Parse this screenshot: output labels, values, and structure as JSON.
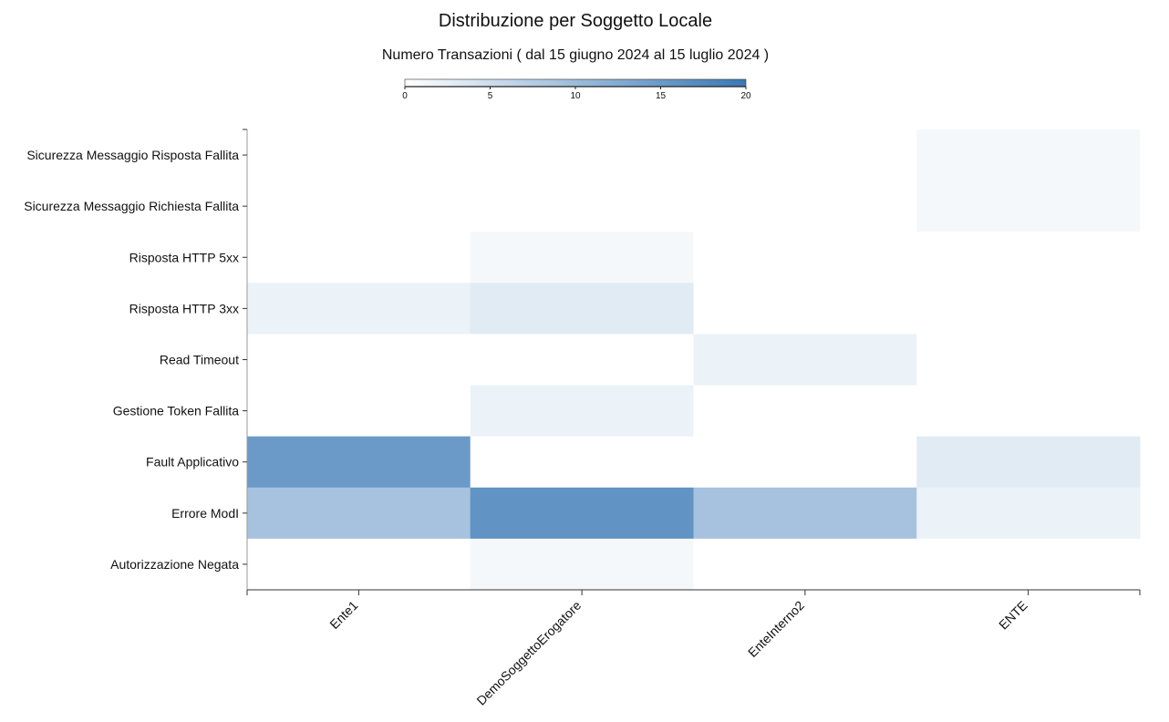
{
  "chart_data": {
    "type": "heatmap",
    "title": "Distribuzione per Soggetto Locale",
    "subtitle": "Numero Transazioni ( dal 15 giugno 2024 al 15 luglio 2024 )",
    "x_categories": [
      "Ente1",
      "DemoSoggettoErogatore",
      "EnteInterno2",
      "ENTE"
    ],
    "y_categories": [
      "Sicurezza Messaggio Risposta Fallita",
      "Sicurezza Messaggio Richiesta Fallita",
      "Risposta HTTP 5xx",
      "Risposta HTTP 3xx",
      "Read Timeout",
      "Gestione Token Fallita",
      "Fault Applicativo",
      "Errore ModI",
      "Autorizzazione Negata"
    ],
    "values": [
      [
        0,
        0,
        0,
        1
      ],
      [
        0,
        0,
        0,
        1
      ],
      [
        0,
        1,
        0,
        0
      ],
      [
        2,
        3,
        0,
        0
      ],
      [
        0,
        0,
        2,
        0
      ],
      [
        0,
        2,
        0,
        0
      ],
      [
        15,
        0,
        0,
        3
      ],
      [
        9,
        16,
        9,
        2
      ],
      [
        0,
        1,
        0,
        0
      ]
    ],
    "color_scale": {
      "min": 0,
      "max": 20,
      "ticks": [
        0,
        5,
        10,
        15,
        20
      ],
      "low_color": "#ffffff",
      "high_color": "#3a78b5"
    },
    "grid": false
  }
}
